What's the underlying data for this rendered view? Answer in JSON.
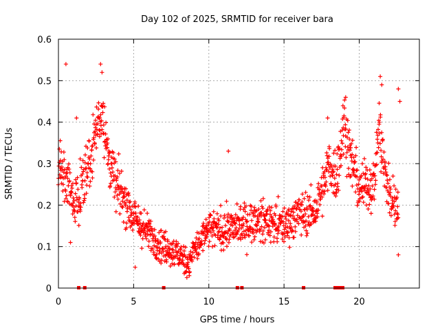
{
  "chart_data": {
    "type": "scatter",
    "title": "Day 102 of 2025, SRMTID for receiver bara",
    "xlabel": "GPS time / hours",
    "ylabel": "SRMTID / TECUs",
    "xlim": [
      0,
      24
    ],
    "ylim": [
      0,
      0.6
    ],
    "x_ticks": [
      0,
      5,
      10,
      15,
      20
    ],
    "x_tick_labels": [
      "0",
      "5",
      "10",
      "15",
      "20"
    ],
    "y_ticks": [
      0,
      0.1,
      0.2,
      0.3,
      0.4,
      0.5,
      0.6
    ],
    "y_tick_labels": [
      "0",
      "0.1",
      "0.2",
      "0.3",
      "0.4",
      "0.5",
      "0.6"
    ],
    "grid": true,
    "marker": "+",
    "marker_color": "#ff0000",
    "series_name": "SRMTID",
    "trend": [
      [
        0.0,
        0.3
      ],
      [
        0.5,
        0.27
      ],
      [
        1.0,
        0.2
      ],
      [
        1.5,
        0.24
      ],
      [
        2.0,
        0.3
      ],
      [
        2.5,
        0.38
      ],
      [
        2.9,
        0.44
      ],
      [
        3.3,
        0.32
      ],
      [
        3.8,
        0.25
      ],
      [
        4.5,
        0.21
      ],
      [
        5.0,
        0.17
      ],
      [
        6.0,
        0.13
      ],
      [
        7.0,
        0.1
      ],
      [
        8.0,
        0.08
      ],
      [
        8.6,
        0.06
      ],
      [
        9.0,
        0.09
      ],
      [
        10.0,
        0.14
      ],
      [
        11.0,
        0.14
      ],
      [
        12.0,
        0.15
      ],
      [
        13.0,
        0.16
      ],
      [
        14.0,
        0.16
      ],
      [
        15.0,
        0.15
      ],
      [
        16.0,
        0.18
      ],
      [
        17.0,
        0.18
      ],
      [
        17.7,
        0.25
      ],
      [
        18.0,
        0.3
      ],
      [
        18.5,
        0.27
      ],
      [
        19.0,
        0.4
      ],
      [
        19.5,
        0.3
      ],
      [
        20.0,
        0.24
      ],
      [
        20.5,
        0.25
      ],
      [
        21.0,
        0.25
      ],
      [
        21.3,
        0.4
      ],
      [
        21.6,
        0.3
      ],
      [
        22.0,
        0.22
      ],
      [
        22.6,
        0.2
      ]
    ],
    "spikes": [
      {
        "x": 0.5,
        "y": 0.54
      },
      {
        "x": 1.2,
        "y": 0.41
      },
      {
        "x": 2.8,
        "y": 0.54
      },
      {
        "x": 2.9,
        "y": 0.52
      },
      {
        "x": 11.3,
        "y": 0.33
      },
      {
        "x": 17.9,
        "y": 0.41
      },
      {
        "x": 19.1,
        "y": 0.46
      },
      {
        "x": 21.4,
        "y": 0.51
      },
      {
        "x": 21.5,
        "y": 0.49
      },
      {
        "x": 22.6,
        "y": 0.48
      },
      {
        "x": 22.7,
        "y": 0.45
      },
      {
        "x": 22.6,
        "y": 0.08
      },
      {
        "x": 0.8,
        "y": 0.11
      },
      {
        "x": 5.1,
        "y": 0.05
      },
      {
        "x": 8.7,
        "y": 0.03
      }
    ],
    "zero_points_x": [
      1.35,
      1.75,
      7.0,
      11.9,
      12.2,
      16.3,
      18.4,
      18.6,
      18.8,
      18.9
    ],
    "n_points": 1300
  }
}
